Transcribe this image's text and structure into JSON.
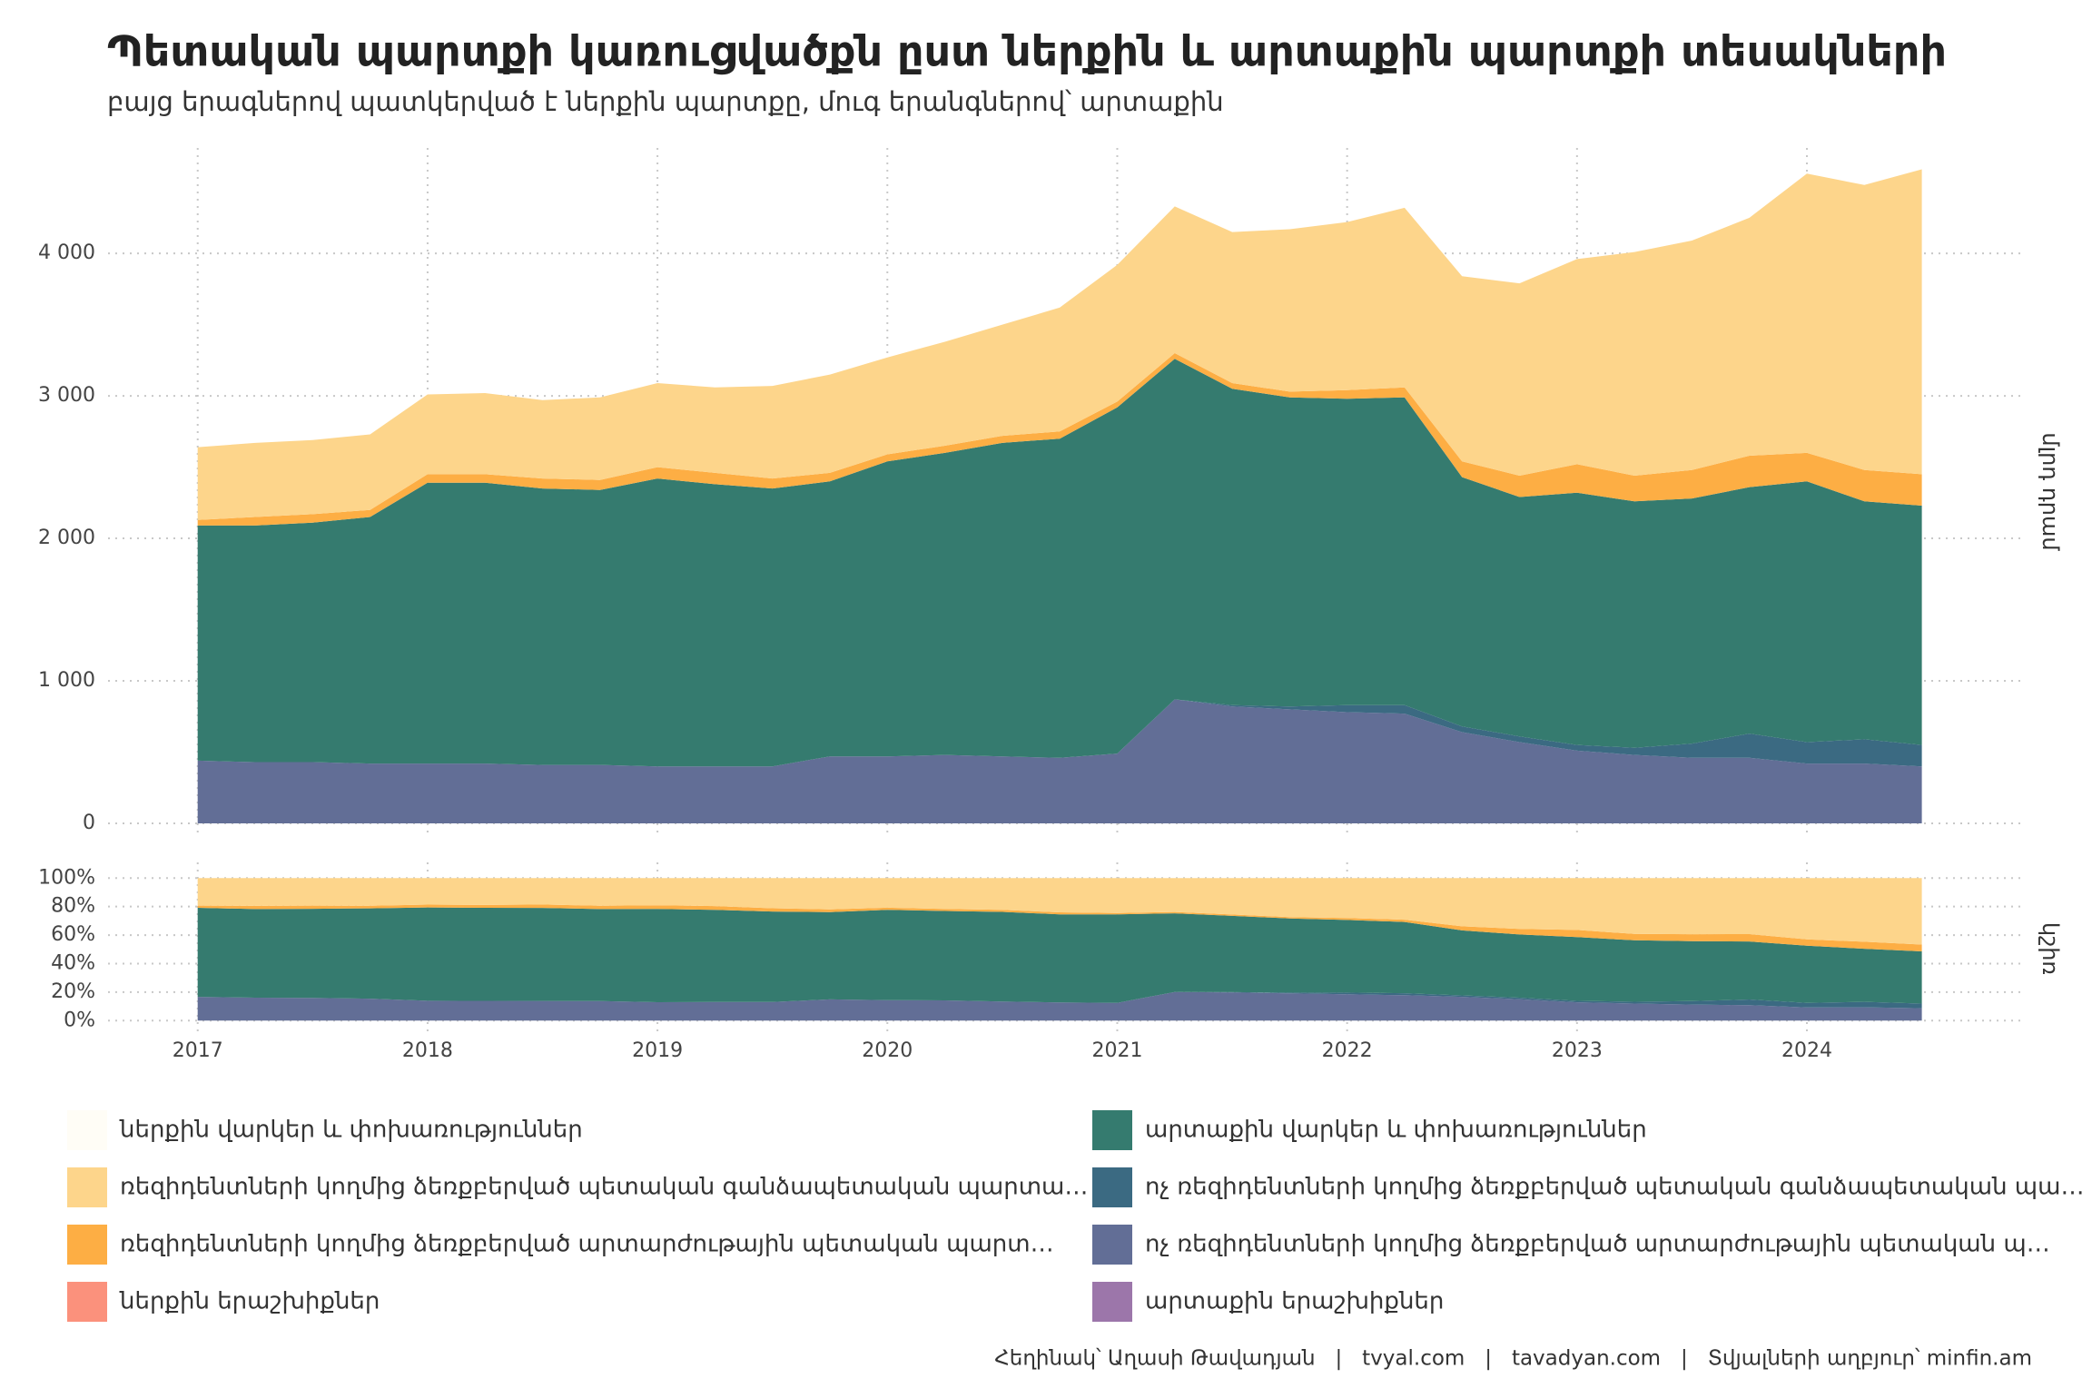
{
  "chart_data": {
    "type": "area",
    "title": "Պետական պարտքի կառուցվածքն ըստ ներքին և արտաքին պարտքի տեսակների",
    "subtitle": "բայց երագներով պատկերված է ներքին պարտքը, մուգ երանգներով՝ արտաքին",
    "caption": "Հեղինակ՝ Աղասի Թավադյան   |   tvyal.com   |   tavadyan.com   |   Տվյալների աղբյուր՝ minfin.am",
    "x": [
      2017,
      2017.25,
      2017.5,
      2017.75,
      2018,
      2018.25,
      2018.5,
      2018.75,
      2019,
      2019.25,
      2019.5,
      2019.75,
      2020,
      2020.25,
      2020.5,
      2020.75,
      2021,
      2021.25,
      2021.5,
      2021.75,
      2022,
      2022.25,
      2022.5,
      2022.75,
      2023,
      2023.25,
      2023.5,
      2023.75,
      2024,
      2024.25,
      2024.5
    ],
    "xlim": [
      2016.61,
      2024.94
    ],
    "xticks": [
      2017,
      2018,
      2019,
      2020,
      2021,
      2022,
      2023,
      2024
    ],
    "grid": true,
    "panels": [
      {
        "label": "մլրդ դրամ",
        "normalize": false,
        "ylim": [
          -83,
          4740
        ],
        "yticks": [
          0,
          {
            "value": 1000,
            "label": "1 000"
          },
          {
            "value": 2000,
            "label": "2 000"
          },
          {
            "value": 3000,
            "label": "3 000"
          },
          {
            "value": 4000,
            "label": "4 000"
          }
        ]
      },
      {
        "label": "կշիռ",
        "normalize": true,
        "ylim": [
          -10,
          111
        ],
        "yticks": [
          {
            "value": 0,
            "label": "0%"
          },
          {
            "value": 20,
            "label": "20%"
          },
          {
            "value": 40,
            "label": "40%"
          },
          {
            "value": 60,
            "label": "60%"
          },
          {
            "value": 80,
            "label": "80%"
          },
          {
            "value": 100,
            "label": "100%"
          }
        ]
      }
    ],
    "series": [
      {
        "name": "ներքին վարկեր և փոխառություններ",
        "color": "#fffdf6",
        "values": [
          0,
          0,
          0,
          0,
          0,
          0,
          0,
          0,
          0,
          0,
          0,
          0,
          0,
          0,
          0,
          0,
          0,
          0,
          0,
          0,
          0,
          0,
          0,
          0,
          0,
          0,
          0,
          0,
          0,
          0,
          0
        ]
      },
      {
        "name": "արտաքին վարկեր և փոխառություններ",
        "color": "#357b6f",
        "values": [
          1650,
          1660,
          1680,
          1730,
          1970,
          1970,
          1940,
          1930,
          2020,
          1980,
          1950,
          1930,
          2070,
          2120,
          2200,
          2240,
          2430,
          2390,
          2220,
          2170,
          2150,
          2160,
          1750,
          1680,
          1770,
          1730,
          1720,
          1730,
          1830,
          1670,
          1680
        ]
      },
      {
        "name": "ռեզիդենտների կողմից ձեռքբերված պետական գանձապետական պարտա…",
        "color": "#fdd58b",
        "values": [
          510,
          520,
          520,
          530,
          560,
          570,
          550,
          580,
          590,
          600,
          650,
          690,
          680,
          730,
          780,
          870,
          960,
          1030,
          1060,
          1140,
          1180,
          1260,
          1300,
          1350,
          1440,
          1570,
          1610,
          1670,
          1960,
          2000,
          2140
        ]
      },
      {
        "name": "ոչ ռեզիդենտների կողմից ձեռքբերված պետական գանձապետական պա…",
        "color": "#3b6a82",
        "values": [
          0,
          0,
          0,
          0,
          0,
          0,
          0,
          0,
          0,
          0,
          0,
          0,
          0,
          0,
          0,
          0,
          0,
          0,
          10,
          20,
          50,
          60,
          40,
          40,
          40,
          50,
          100,
          170,
          150,
          170,
          150
        ]
      },
      {
        "name": "ռեզիդենտների կողմից ձեռքբերված արտարժութային պետական պարտ…",
        "color": "#fdae44",
        "values": [
          40,
          60,
          60,
          50,
          60,
          60,
          70,
          70,
          80,
          80,
          70,
          60,
          50,
          50,
          50,
          50,
          40,
          40,
          40,
          40,
          60,
          70,
          110,
          150,
          200,
          180,
          200,
          220,
          200,
          220,
          220
        ]
      },
      {
        "name": "ոչ ռեզիդենտների կողմից ձեռքբերված արտարժութային պետական պ…",
        "color": "#626e96",
        "values": [
          440,
          430,
          430,
          420,
          420,
          420,
          410,
          410,
          400,
          400,
          400,
          470,
          470,
          480,
          470,
          460,
          490,
          870,
          820,
          800,
          780,
          770,
          640,
          570,
          510,
          480,
          460,
          460,
          420,
          420,
          400
        ]
      },
      {
        "name": "ներքին երաշխիքներ",
        "color": "#fb917c",
        "values": [
          0,
          0,
          0,
          0,
          0,
          0,
          0,
          0,
          0,
          0,
          0,
          0,
          0,
          0,
          0,
          0,
          0,
          0,
          0,
          0,
          0,
          0,
          0,
          0,
          0,
          0,
          0,
          0,
          0,
          0,
          0
        ]
      },
      {
        "name": "արտաքին երաշխիքներ",
        "color": "#9c76aa",
        "values": [
          0,
          0,
          0,
          0,
          0,
          0,
          0,
          0,
          0,
          0,
          0,
          0,
          0,
          0,
          0,
          0,
          0,
          0,
          0,
          0,
          0,
          0,
          0,
          0,
          0,
          0,
          0,
          0,
          0,
          0,
          0
        ]
      }
    ]
  }
}
